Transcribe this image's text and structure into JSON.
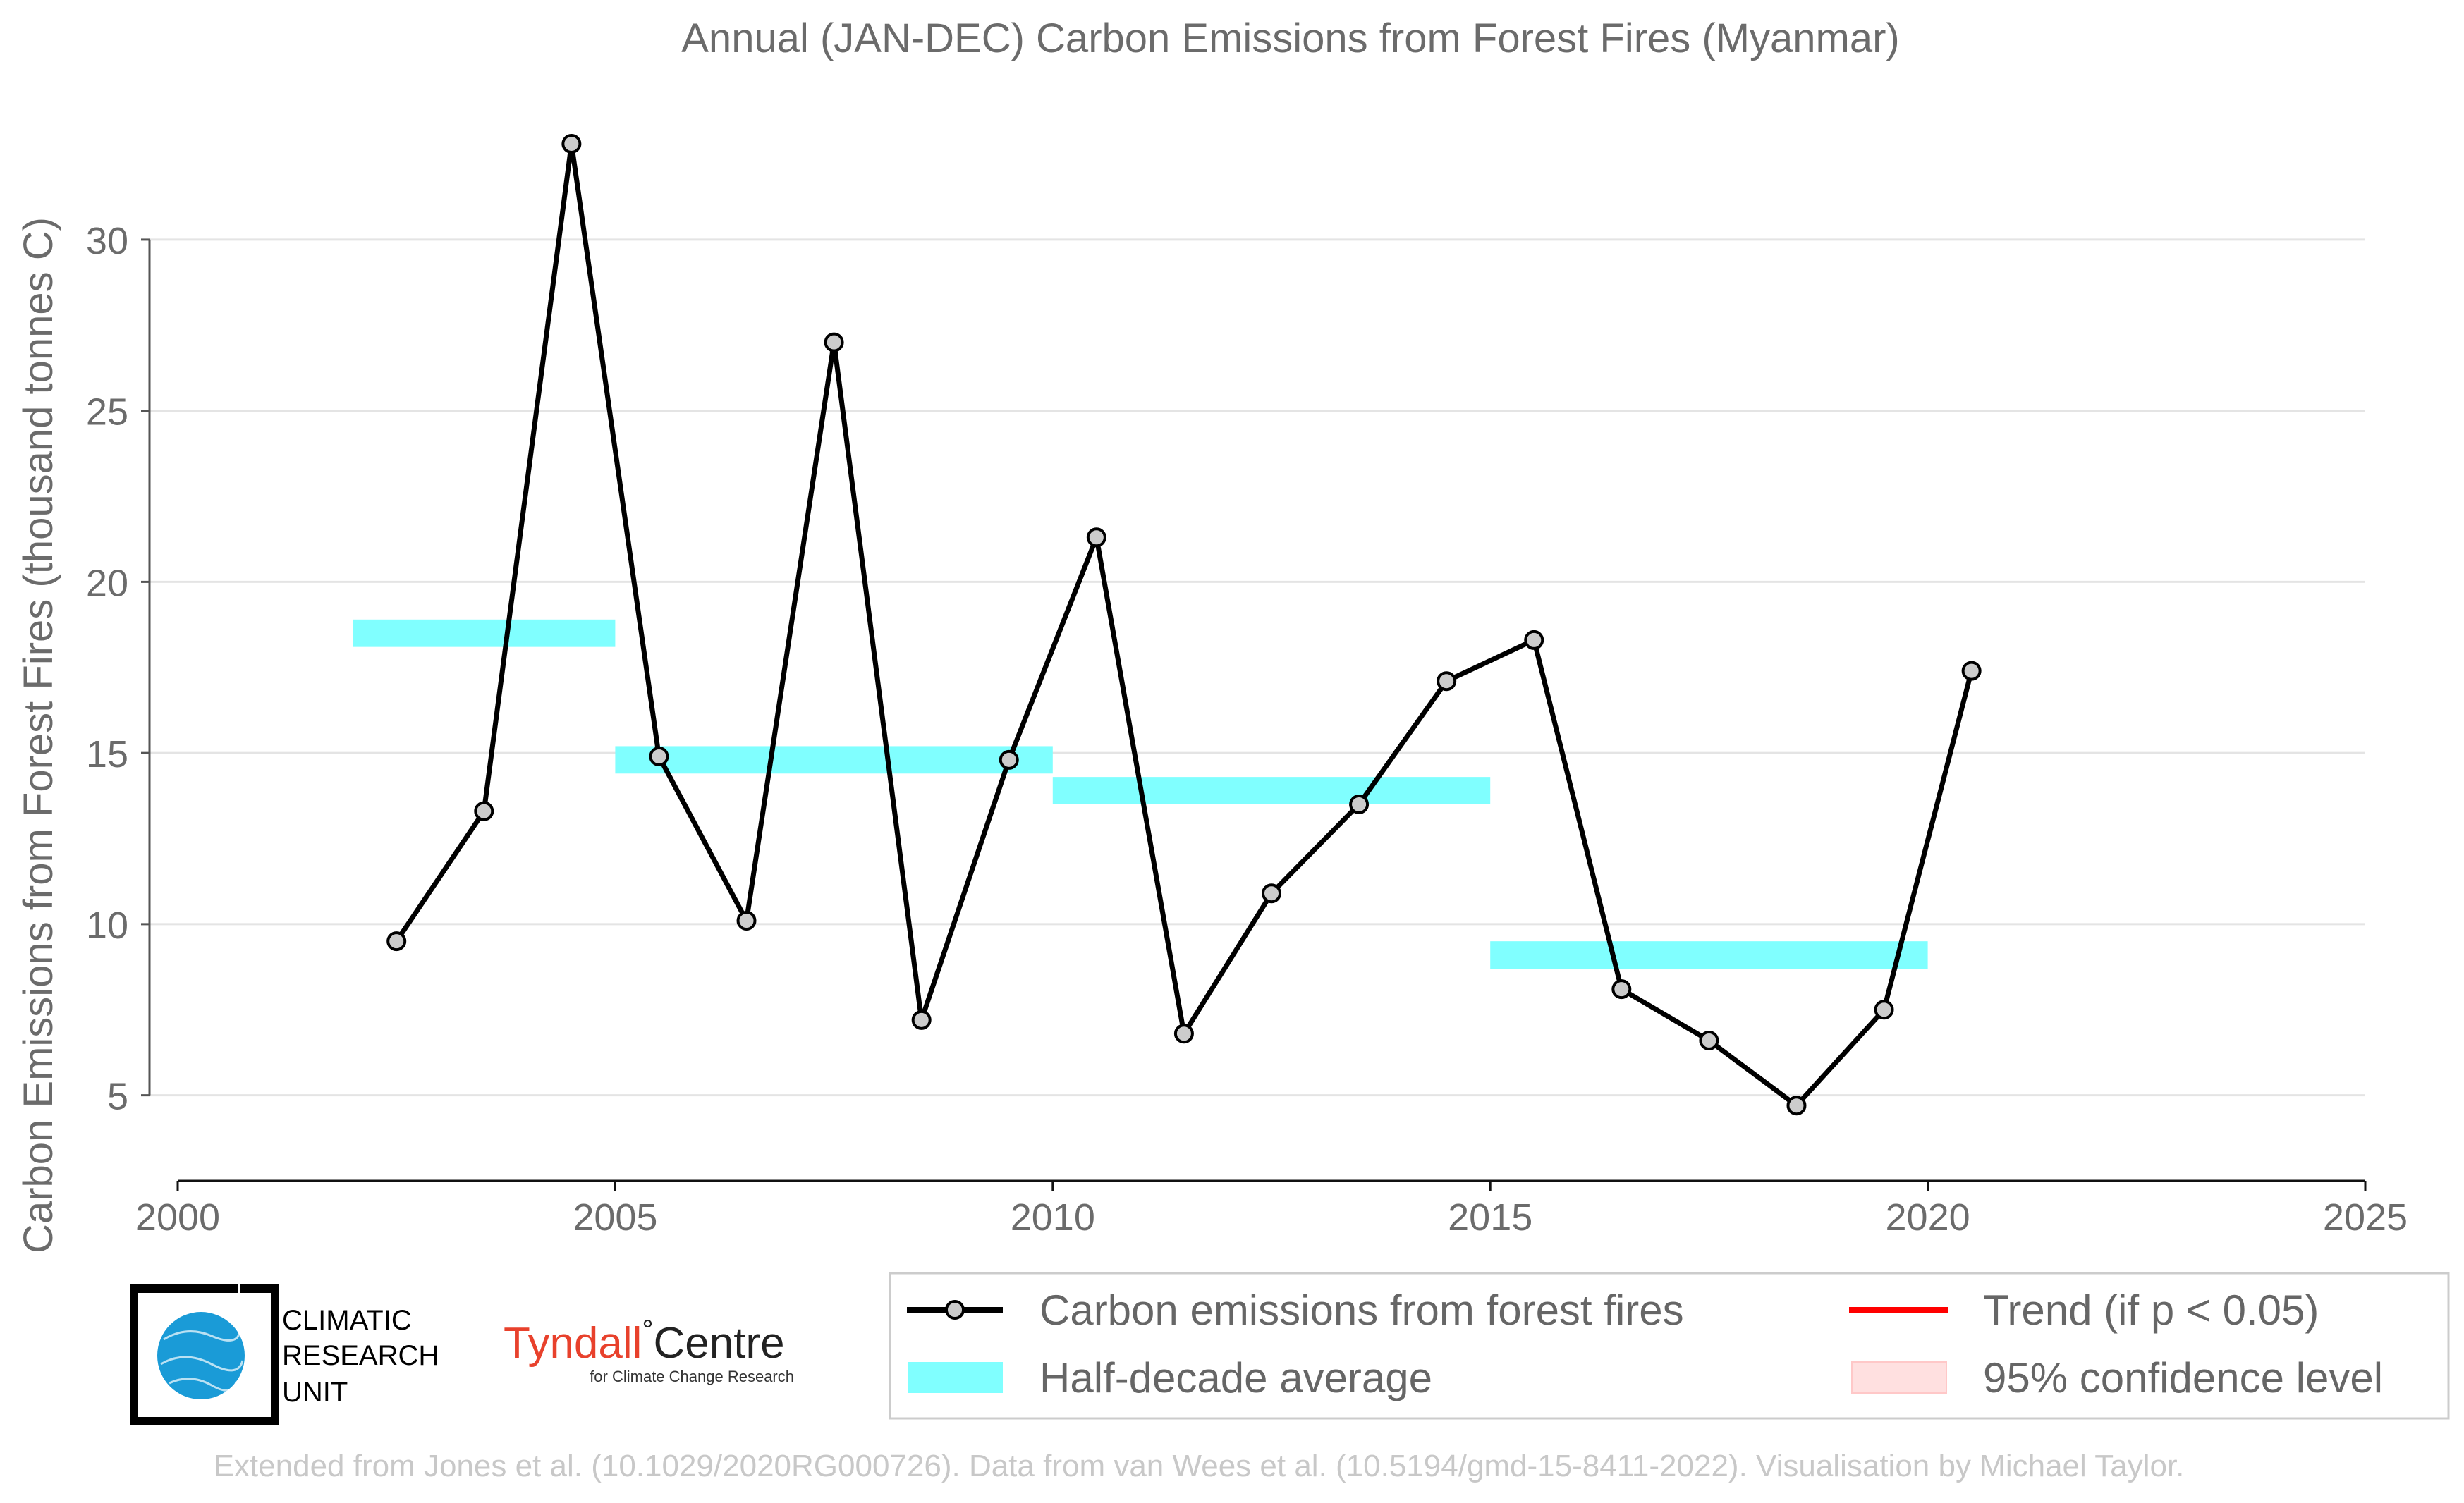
{
  "chart_data": {
    "type": "line",
    "title": "Annual (JAN-DEC) Carbon Emissions from Forest Fires (Myanmar)",
    "xlabel": "",
    "ylabel": "Carbon Emissions from Forest Fires (thousand tonnes C)",
    "xlim": [
      2000,
      2025
    ],
    "ylim": [
      2.5,
      33.5
    ],
    "x_ticks": [
      2000,
      2005,
      2010,
      2015,
      2020,
      2025
    ],
    "y_ticks": [
      5,
      10,
      15,
      20,
      25,
      30
    ],
    "grid": "horizontal",
    "series": [
      {
        "name": "Carbon emissions from forest fires",
        "color": "#000000",
        "marker_fill": "#cccccc",
        "x": [
          2002.5,
          2003.5,
          2004.5,
          2005.5,
          2006.5,
          2007.5,
          2008.5,
          2009.5,
          2010.5,
          2011.5,
          2012.5,
          2013.5,
          2014.5,
          2015.5,
          2016.5,
          2017.5,
          2018.5,
          2019.5,
          2020.5
        ],
        "y": [
          9.5,
          13.3,
          32.8,
          14.9,
          10.1,
          27.0,
          7.2,
          14.8,
          21.3,
          6.8,
          10.9,
          13.5,
          17.1,
          18.3,
          8.1,
          6.6,
          4.7,
          7.5,
          17.4
        ]
      }
    ],
    "half_decade_average": {
      "name": "Half-decade average",
      "color": "#80ffff",
      "segments": [
        {
          "x0": 2002,
          "x1": 2005,
          "y": 18.5
        },
        {
          "x0": 2005,
          "x1": 2010,
          "y": 14.8
        },
        {
          "x0": 2010,
          "x1": 2015,
          "y": 13.9
        },
        {
          "x0": 2015,
          "x1": 2020,
          "y": 9.1
        }
      ]
    },
    "legend": {
      "placement": "bottom-right",
      "entries": [
        {
          "label": "Carbon emissions from forest fires",
          "kind": "line-marker",
          "color": "#000000"
        },
        {
          "label": "Trend (if p < 0.05)",
          "kind": "line",
          "color": "#ff0000"
        },
        {
          "label": "Half-decade average",
          "kind": "band",
          "color": "#80ffff"
        },
        {
          "label": "95% confidence level",
          "kind": "band",
          "color": "#ffe0e0"
        }
      ]
    }
  },
  "logos": {
    "cru_lines": [
      "CLIMATIC",
      "RESEARCH",
      "UNIT"
    ],
    "tyndall_name": "Tyndall",
    "tyndall_degree": "°",
    "tyndall_centre": "Centre",
    "tyndall_sub": "for Climate Change Research"
  },
  "credit": "Extended from Jones et al. (10.1029/2020RG000726). Data from van Wees et al. (10.5194/gmd-15-8411-2022). Visualisation by Michael Taylor."
}
